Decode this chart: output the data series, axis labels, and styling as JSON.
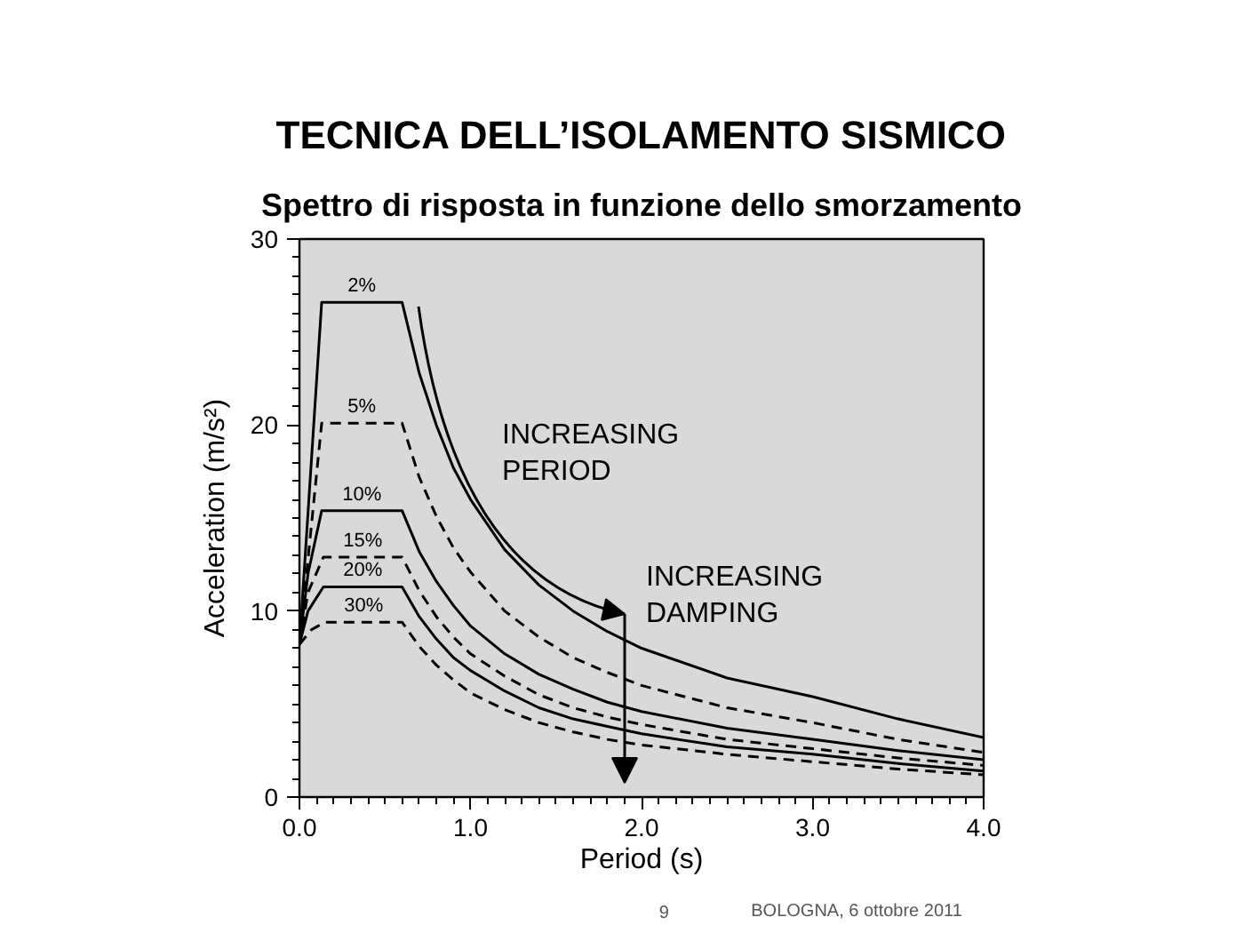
{
  "chart_data": {
    "type": "line",
    "title": "TECNICA DELL’ISOLAMENTO SISMICO",
    "subtitle": "Spettro di risposta in funzione dello smorzamento",
    "xlabel": "Period (s)",
    "ylabel": "Acceleration (m/s²)",
    "xlim": [
      0,
      4
    ],
    "ylim": [
      0,
      30
    ],
    "xticks": [
      {
        "value": 0,
        "label": "0.0"
      },
      {
        "value": 0.1,
        "label": null
      },
      {
        "value": 0.2,
        "label": null
      },
      {
        "value": 0.3,
        "label": null
      },
      {
        "value": 0.4,
        "label": null
      },
      {
        "value": 0.5,
        "label": null
      },
      {
        "value": 0.6,
        "label": null
      },
      {
        "value": 0.7,
        "label": null
      },
      {
        "value": 0.8,
        "label": null
      },
      {
        "value": 0.9,
        "label": null
      },
      {
        "value": 1,
        "label": "1.0"
      },
      {
        "value": 1.1,
        "label": null
      },
      {
        "value": 1.2,
        "label": null
      },
      {
        "value": 1.3,
        "label": null
      },
      {
        "value": 1.4,
        "label": null
      },
      {
        "value": 1.5,
        "label": null
      },
      {
        "value": 1.6,
        "label": null
      },
      {
        "value": 1.7,
        "label": null
      },
      {
        "value": 1.8,
        "label": null
      },
      {
        "value": 1.9,
        "label": null
      },
      {
        "value": 2,
        "label": "2.0"
      },
      {
        "value": 2.1,
        "label": null
      },
      {
        "value": 2.2,
        "label": null
      },
      {
        "value": 2.3,
        "label": null
      },
      {
        "value": 2.4,
        "label": null
      },
      {
        "value": 2.5,
        "label": null
      },
      {
        "value": 2.6,
        "label": null
      },
      {
        "value": 2.7,
        "label": null
      },
      {
        "value": 2.8,
        "label": null
      },
      {
        "value": 2.9,
        "label": null
      },
      {
        "value": 3,
        "label": "3.0"
      },
      {
        "value": 3.1,
        "label": null
      },
      {
        "value": 3.2,
        "label": null
      },
      {
        "value": 3.3,
        "label": null
      },
      {
        "value": 3.4,
        "label": null
      },
      {
        "value": 3.5,
        "label": null
      },
      {
        "value": 3.6,
        "label": null
      },
      {
        "value": 3.7,
        "label": null
      },
      {
        "value": 3.8,
        "label": null
      },
      {
        "value": 3.9,
        "label": null
      },
      {
        "value": 4,
        "label": "4.0"
      }
    ],
    "yticks": [
      0,
      {
        "value": 1,
        "label": null
      },
      {
        "value": 2,
        "label": null
      },
      {
        "value": 3,
        "label": null
      },
      {
        "value": 4,
        "label": null
      },
      {
        "value": 5,
        "label": null
      },
      {
        "value": 6,
        "label": null
      },
      {
        "value": 7,
        "label": null
      },
      {
        "value": 8,
        "label": null
      },
      {
        "value": 9,
        "label": null
      },
      10,
      {
        "value": 11,
        "label": null
      },
      {
        "value": 12,
        "label": null
      },
      {
        "value": 13,
        "label": null
      },
      {
        "value": 14,
        "label": null
      },
      {
        "value": 15,
        "label": null
      },
      {
        "value": 16,
        "label": null
      },
      {
        "value": 17,
        "label": null
      },
      {
        "value": 18,
        "label": null
      },
      {
        "value": 19,
        "label": null
      },
      20,
      {
        "value": 21,
        "label": null
      },
      {
        "value": 22,
        "label": null
      },
      {
        "value": 23,
        "label": null
      },
      {
        "value": 24,
        "label": null
      },
      {
        "value": 25,
        "label": null
      },
      {
        "value": 26,
        "label": null
      },
      {
        "value": 27,
        "label": null
      },
      {
        "value": 28,
        "label": null
      },
      {
        "value": 29,
        "label": null
      },
      30
    ],
    "series": [
      {
        "name": "2%",
        "color": "#000000",
        "line_style": "solid",
        "x": [
          0,
          0.13,
          0.6,
          0.7,
          0.8,
          0.9,
          1.0,
          1.2,
          1.4,
          1.6,
          1.8,
          2.0,
          2.5,
          3.0,
          3.5,
          4.0
        ],
        "values": [
          8.2,
          26.6,
          26.6,
          22.8,
          20.0,
          17.7,
          16.0,
          13.3,
          11.4,
          10.0,
          8.9,
          8.0,
          6.4,
          5.4,
          4.2,
          3.2
        ]
      },
      {
        "name": "5%",
        "color": "#000000",
        "line_style": "dashed",
        "x": [
          0,
          0.13,
          0.6,
          0.7,
          0.8,
          0.9,
          1.0,
          1.2,
          1.4,
          1.6,
          1.8,
          2.0,
          2.5,
          3.0,
          3.5,
          4.0
        ],
        "values": [
          8.2,
          20.1,
          20.1,
          17.2,
          15.1,
          13.4,
          12.1,
          10.0,
          8.6,
          7.5,
          6.7,
          6.0,
          4.8,
          4.0,
          3.1,
          2.4
        ]
      },
      {
        "name": "10%",
        "color": "#000000",
        "line_style": "solid",
        "x": [
          0,
          0.05,
          0.13,
          0.6,
          0.7,
          0.8,
          0.9,
          1.0,
          1.2,
          1.4,
          1.6,
          1.8,
          2.0,
          2.5,
          3.0,
          3.5,
          4.0
        ],
        "values": [
          8.2,
          12.0,
          15.4,
          15.4,
          13.2,
          11.6,
          10.3,
          9.2,
          7.7,
          6.6,
          5.8,
          5.1,
          4.6,
          3.7,
          3.1,
          2.5,
          2.0
        ]
      },
      {
        "name": "15%",
        "color": "#000000",
        "line_style": "dashed",
        "x": [
          0,
          0.05,
          0.14,
          0.6,
          0.7,
          0.8,
          0.9,
          1.0,
          1.2,
          1.4,
          1.6,
          1.8,
          2.0,
          2.5,
          3.0,
          3.5,
          4.0
        ],
        "values": [
          8.2,
          11.0,
          12.9,
          12.9,
          11.1,
          9.7,
          8.6,
          7.7,
          6.5,
          5.5,
          4.8,
          4.3,
          3.9,
          3.1,
          2.6,
          2.1,
          1.7
        ]
      },
      {
        "name": "20%",
        "color": "#000000",
        "line_style": "solid",
        "x": [
          0,
          0.05,
          0.14,
          0.6,
          0.7,
          0.8,
          0.9,
          1.0,
          1.2,
          1.4,
          1.6,
          1.8,
          2.0,
          2.5,
          3.0,
          3.5,
          4.0
        ],
        "values": [
          8.2,
          10.0,
          11.3,
          11.3,
          9.7,
          8.5,
          7.5,
          6.8,
          5.7,
          4.8,
          4.2,
          3.8,
          3.4,
          2.7,
          2.3,
          1.8,
          1.4
        ]
      },
      {
        "name": "30%",
        "color": "#000000",
        "line_style": "dashed",
        "x": [
          0,
          0.07,
          0.15,
          0.6,
          0.7,
          0.8,
          0.9,
          1.0,
          1.2,
          1.4,
          1.6,
          1.8,
          2.0,
          2.5,
          3.0,
          3.5,
          4.0
        ],
        "values": [
          8.2,
          9.0,
          9.4,
          9.4,
          8.1,
          7.1,
          6.3,
          5.6,
          4.7,
          4.0,
          3.5,
          3.1,
          2.8,
          2.3,
          1.9,
          1.5,
          1.2
        ]
      }
    ],
    "annotations": [
      "INCREASING PERIOD",
      "INCREASING DAMPING",
      "9",
      "BOLOGNA, 6 ottobre 2011"
    ]
  }
}
